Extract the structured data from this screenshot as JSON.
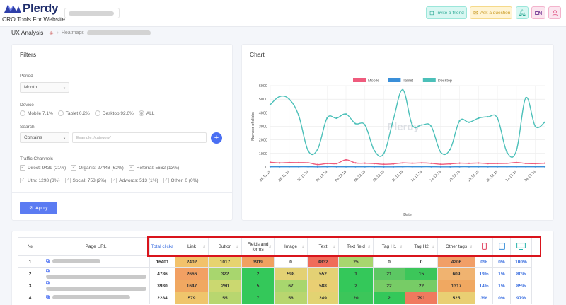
{
  "header": {
    "logo_text": "Plerdy",
    "tagline": "CRO Tools For Website",
    "invite_label": "Invite a friend",
    "ask_label": "Ask a question",
    "lang_label": "EN"
  },
  "breadcrumb": {
    "title": "UX Analysis",
    "sub": "Heatmaps"
  },
  "filters": {
    "title": "Filters",
    "period_label": "Period",
    "period_value": "Month",
    "device_label": "Device",
    "devices": [
      {
        "label": "Mobile 7.1%"
      },
      {
        "label": "Tablet 0.2%"
      },
      {
        "label": "Desktop 92.6%"
      },
      {
        "label": "ALL"
      }
    ],
    "search_label": "Search",
    "search_mode": "Contains",
    "search_placeholder": "Example: /category/",
    "traffic_label": "Traffic Channels",
    "channels_row1": [
      {
        "label": "Direct: 9439 (21%)"
      },
      {
        "label": "Organic: 27448 (62%)"
      },
      {
        "label": "Referral: 5662 (13%)"
      }
    ],
    "channels_row2": [
      {
        "label": "Utm: 1298 (3%)"
      },
      {
        "label": "Social: 753 (2%)"
      },
      {
        "label": "Adwords: 513 (1%)"
      },
      {
        "label": "Other: 0 (0%)"
      }
    ],
    "apply_label": "Apply"
  },
  "chart_panel": {
    "title": "Chart",
    "watermark": "Plerdy"
  },
  "chart_data": {
    "type": "line",
    "xlabel": "Date",
    "ylabel": "Number of clicks",
    "ylim": [
      0,
      6000
    ],
    "yticks": [
      0,
      1000,
      2000,
      3000,
      4000,
      5000,
      6000
    ],
    "legend_position": "top",
    "grid": true,
    "x": [
      "26.11.19",
      "27.11.19",
      "28.11.19",
      "29.11.19",
      "30.11.19",
      "01.12.19",
      "02.12.19",
      "03.12.19",
      "04.12.19",
      "05.12.19",
      "06.12.19",
      "07.12.19",
      "08.12.19",
      "09.12.19",
      "10.12.19",
      "11.12.19",
      "12.12.19",
      "13.12.19",
      "14.12.19",
      "15.12.19",
      "16.12.19",
      "17.12.19",
      "18.12.19",
      "19.12.19",
      "20.12.19",
      "21.12.19",
      "22.12.19",
      "23.12.19",
      "24.12.19",
      "25.12.19"
    ],
    "xticklabels": [
      "26.11.19",
      "28.11.19",
      "30.11.19",
      "02.12.19",
      "04.12.19",
      "06.12.19",
      "08.12.19",
      "10.12.19",
      "12.12.19",
      "14.12.19",
      "16.12.19",
      "18.12.19",
      "20.12.19",
      "22.12.19",
      "24.12.19"
    ],
    "series": [
      {
        "name": "Mobile",
        "color": "#ef5b7d",
        "values": [
          350,
          300,
          330,
          320,
          310,
          180,
          260,
          250,
          530,
          300,
          280,
          250,
          200,
          230,
          300,
          280,
          300,
          270,
          200,
          230,
          280,
          270,
          290,
          250,
          260,
          270,
          330,
          260,
          250,
          280
        ]
      },
      {
        "name": "Tablet",
        "color": "#3a8fd9",
        "values": [
          20,
          20,
          20,
          20,
          20,
          10,
          20,
          20,
          20,
          20,
          20,
          20,
          10,
          10,
          20,
          20,
          20,
          20,
          10,
          10,
          20,
          20,
          20,
          20,
          20,
          20,
          20,
          20,
          20,
          20
        ]
      },
      {
        "name": "Desktop",
        "color": "#4cc0b9",
        "values": [
          4600,
          5200,
          5000,
          3800,
          1200,
          1300,
          3600,
          3600,
          3900,
          3200,
          3100,
          1200,
          1000,
          3500,
          5700,
          3100,
          3100,
          3000,
          1100,
          1300,
          3400,
          3300,
          3600,
          3700,
          3600,
          1100,
          1200,
          5100,
          3000,
          3300
        ]
      }
    ]
  },
  "table": {
    "headers": {
      "no": "№",
      "url": "Page URL",
      "total": "Total clicks",
      "cols": [
        "Link",
        "Button",
        "Fields and forms",
        "Image",
        "Text",
        "Text field",
        "Tag H1",
        "Tag H2",
        "Other tags"
      ]
    },
    "rows": [
      {
        "no": "1",
        "url_w": 68,
        "total": "16401",
        "cells": [
          "2402",
          "1017",
          "3919",
          "0",
          "4832",
          "25",
          "0",
          "0",
          "4206"
        ],
        "colors": [
          "#f2c26b",
          "#e6d36f",
          "#f0a160",
          "#ffffff",
          "#f06c5a",
          "#a8d66e",
          "#ffffff",
          "#ffffff",
          "#f19f67"
        ],
        "pct": [
          "0%",
          "0%",
          "100%"
        ]
      },
      {
        "no": "2",
        "url_w": 142,
        "total": "4786",
        "cells": [
          "2666",
          "322",
          "2",
          "598",
          "552",
          "1",
          "21",
          "15",
          "609"
        ],
        "colors": [
          "#f2a063",
          "#a8d66e",
          "#34c85a",
          "#e3d174",
          "#e3d174",
          "#34c85a",
          "#5cc763",
          "#3cc65a",
          "#f0b370"
        ],
        "pct": [
          "19%",
          "1%",
          "80%"
        ]
      },
      {
        "no": "3",
        "url_w": 142,
        "total": "3930",
        "cells": [
          "1647",
          "260",
          "5",
          "67",
          "588",
          "2",
          "22",
          "22",
          "1317"
        ],
        "colors": [
          "#f0a861",
          "#cbd870",
          "#34c85a",
          "#a8d66e",
          "#e9cf73",
          "#34c85a",
          "#77cc66",
          "#77cc66",
          "#f0a861"
        ],
        "pct": [
          "14%",
          "1%",
          "85%"
        ]
      },
      {
        "no": "4",
        "url_w": 110,
        "total": "2284",
        "cells": [
          "579",
          "55",
          "7",
          "56",
          "249",
          "20",
          "2",
          "791",
          "525"
        ],
        "colors": [
          "#efc56c",
          "#b8d66f",
          "#34c85a",
          "#b8d66f",
          "#e2d372",
          "#3cc65a",
          "#34c85a",
          "#f07a5e",
          "#e9cf73"
        ],
        "pct": [
          "3%",
          "0%",
          "97%"
        ]
      }
    ]
  }
}
